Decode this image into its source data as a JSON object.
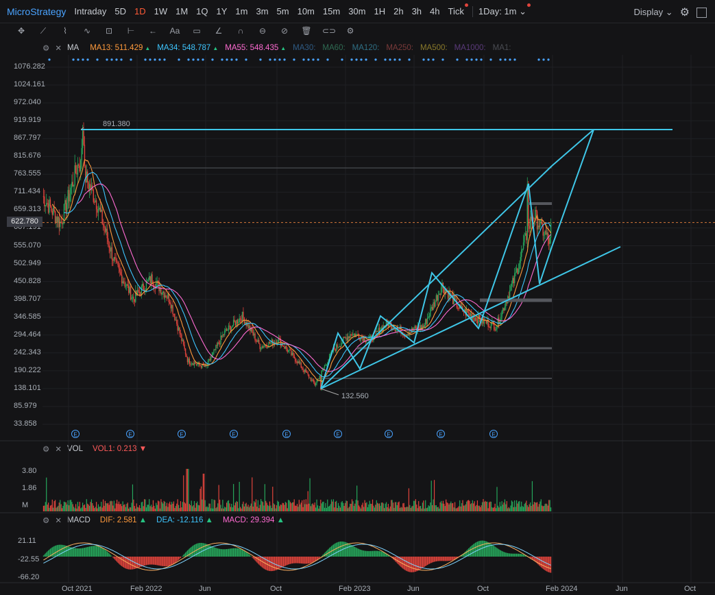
{
  "symbol": "MicroStrategy",
  "timeframes": [
    "Intraday",
    "5D",
    "1D",
    "1W",
    "1M",
    "1Q",
    "1Y",
    "1m",
    "3m",
    "5m",
    "10m",
    "15m",
    "30m",
    "1H",
    "2h",
    "3h",
    "4h",
    "Tick"
  ],
  "active_timeframe": "1D",
  "interval_select": "1Day: 1m",
  "display_label": "Display",
  "toolbar_icons": [
    "crosshair-icon",
    "trendline-icon",
    "fib-icon",
    "wave-icon",
    "pattern-icon",
    "range-icon",
    "arrow-icon",
    "text-icon",
    "comment-icon",
    "ruler-icon",
    "magnet-icon",
    "lock-icon",
    "hide-icon",
    "trash-icon",
    "link-icon",
    "settings-icon"
  ],
  "ma_panel": {
    "name": "MA",
    "items": [
      {
        "label": "MA13:",
        "value": "511.429",
        "color": "#ff9a3c",
        "arrow": "▲",
        "arrow_color": "#26c281"
      },
      {
        "label": "MA34:",
        "value": "548.787",
        "color": "#3ec6ff",
        "arrow": "▲",
        "arrow_color": "#26c281"
      },
      {
        "label": "MA55:",
        "value": "548.435",
        "color": "#ff6bd2",
        "arrow": "▲",
        "arrow_color": "#26c281"
      },
      {
        "label": "MA30:",
        "value": "",
        "color": "#2f5b84",
        "arrow": "",
        "arrow_color": ""
      },
      {
        "label": "MA60:",
        "value": "",
        "color": "#2f6b53",
        "arrow": "",
        "arrow_color": ""
      },
      {
        "label": "MA120:",
        "value": "",
        "color": "#2f6f84",
        "arrow": "",
        "arrow_color": ""
      },
      {
        "label": "MA250:",
        "value": "",
        "color": "#7a3a3a",
        "arrow": "",
        "arrow_color": ""
      },
      {
        "label": "MA500:",
        "value": "",
        "color": "#8a7a2a",
        "arrow": "",
        "arrow_color": ""
      },
      {
        "label": "MA1000:",
        "value": "",
        "color": "#5a3a7a",
        "arrow": "",
        "arrow_color": ""
      },
      {
        "label": "MA1:",
        "value": "",
        "color": "#4a4c52",
        "arrow": "",
        "arrow_color": ""
      }
    ]
  },
  "price_axis": [
    "1076.282",
    "1024.161",
    "972.040",
    "919.919",
    "867.797",
    "815.676",
    "763.555",
    "711.434",
    "659.313",
    "607.191",
    "555.070",
    "502.949",
    "450.828",
    "398.707",
    "346.585",
    "294.464",
    "242.343",
    "190.222",
    "138.101",
    "85.979",
    "33.858"
  ],
  "current_price": "622.780",
  "annotations": {
    "high": "891.380",
    "low": "132.560"
  },
  "earnings_marker": "E",
  "vol_panel": {
    "name": "VOL",
    "label": "VOL1:",
    "value": "0.213",
    "arrow": "▼",
    "axis": [
      "3.80",
      "1.86",
      "M"
    ]
  },
  "macd_panel": {
    "name": "MACD",
    "dif_label": "DIF:",
    "dif_value": "2.581",
    "dif_arrow": "▲",
    "dea_label": "DEA:",
    "dea_value": "-12.116",
    "dea_arrow": "▲",
    "macd_label": "MACD:",
    "macd_value": "29.394",
    "macd_arrow": "▲",
    "axis": [
      "21.11",
      "-22.55",
      "-66.20"
    ]
  },
  "x_axis": [
    "Oct 2021",
    "Feb 2022",
    "Jun",
    "Oct",
    "Feb 2023",
    "Jun",
    "Oct",
    "Feb 2024",
    "Jun",
    "Oct"
  ],
  "colors": {
    "up": "#26a65b",
    "down": "#e0443c",
    "drawing": "#3fc7e8",
    "accent": "#4aa3ff"
  },
  "chart_data": {
    "type": "candlestick",
    "series": [
      {
        "name": "price",
        "x": [
          "Sep 2021",
          "Oct 2021",
          "Nov 2021",
          "Dec 2021",
          "Jan 2022",
          "Feb 2022",
          "Mar 2022",
          "Apr 2022",
          "May 2022",
          "Jun 2022",
          "Jul 2022",
          "Aug 2022",
          "Sep 2022",
          "Oct 2022",
          "Nov 2022",
          "Dec 2022",
          "Jan 2023",
          "Feb 2023",
          "Mar 2023",
          "Apr 2023",
          "May 2023",
          "Jun 2023",
          "Jul 2023",
          "Aug 2023",
          "Sep 2023",
          "Oct 2023",
          "Nov 2023",
          "Dec 2023",
          "Jan 2024"
        ],
        "values": [
          700,
          620,
          800,
          680,
          500,
          400,
          460,
          400,
          220,
          200,
          300,
          350,
          260,
          280,
          220,
          150,
          250,
          300,
          280,
          330,
          300,
          320,
          440,
          370,
          340,
          320,
          460,
          650,
          560
        ]
      }
    ],
    "ylim": [
      33.858,
      1076.282
    ]
  }
}
